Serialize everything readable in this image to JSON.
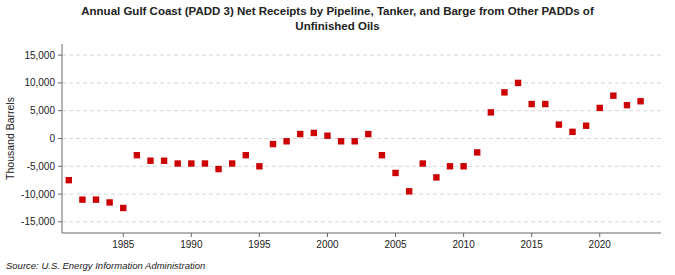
{
  "chart_data": {
    "type": "scatter",
    "title": "Annual Gulf Coast (PADD 3) Net Receipts by Pipeline, Tanker, and Barge from Other PADDs of\nUnfinished Oils",
    "ylabel": "Thousand Barrels",
    "source": "Source: U.S. Energy Information Administration",
    "color": "#cc0000",
    "marker": "square",
    "grid": true,
    "xlim": [
      1980.5,
      2024.5
    ],
    "xticks": [
      1985,
      1990,
      1995,
      2000,
      2005,
      2010,
      2015,
      2020
    ],
    "ylim": [
      -17000,
      17000
    ],
    "yticks": [
      {
        "value": -15000,
        "label": "-15,000"
      },
      {
        "value": -10000,
        "label": "-10,000"
      },
      {
        "value": -5000,
        "label": "-5,000"
      },
      0,
      {
        "value": 5000,
        "label": "5,000"
      },
      {
        "value": 10000,
        "label": "10,000"
      },
      {
        "value": 15000,
        "label": "15,000"
      }
    ],
    "x": [
      1981,
      1982,
      1983,
      1984,
      1985,
      1986,
      1987,
      1988,
      1989,
      1990,
      1991,
      1992,
      1993,
      1994,
      1995,
      1996,
      1997,
      1998,
      1999,
      2000,
      2001,
      2002,
      2003,
      2004,
      2005,
      2006,
      2007,
      2008,
      2009,
      2010,
      2011,
      2012,
      2013,
      2014,
      2015,
      2016,
      2017,
      2018,
      2019,
      2020,
      2021,
      2022,
      2023
    ],
    "values": [
      -7500,
      -11000,
      -11000,
      -11500,
      -12500,
      -3000,
      -4000,
      -4000,
      -4500,
      -4500,
      -4500,
      -5500,
      -4500,
      -3000,
      -5000,
      -1000,
      -500,
      800,
      1000,
      500,
      -500,
      -500,
      800,
      -3000,
      -6200,
      -9500,
      -4500,
      -7000,
      -5000,
      -5000,
      -2500,
      4700,
      8300,
      10000,
      6200,
      6200,
      2500,
      1200,
      2300,
      5500,
      7700,
      6000,
      6700
    ]
  }
}
